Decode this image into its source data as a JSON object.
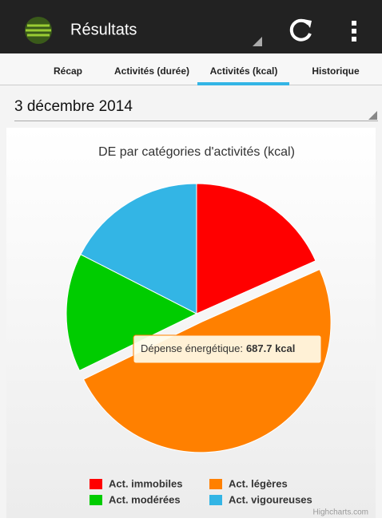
{
  "app_bar": {
    "title": "Résultats"
  },
  "tabs": [
    "Récap",
    "Activités (durée)",
    "Activités (kcal)",
    "Historique"
  ],
  "date": "3 décembre 2014",
  "chart_data": {
    "type": "pie",
    "title": "DE par catégories d'activités (kcal)",
    "categories": [
      "Act. immobiles",
      "Act. légères",
      "Act. modérées",
      "Act. vigoureuses"
    ],
    "values": [
      255,
      687.7,
      205,
      243
    ],
    "value_labels": [
      null,
      "687.7 kcal",
      null,
      null
    ],
    "colors": [
      "#ff0000",
      "#ff8000",
      "#00cc00",
      "#33b5e5"
    ],
    "tooltip_label": "Dépense énergétique:",
    "credit": "Highcharts.com"
  }
}
